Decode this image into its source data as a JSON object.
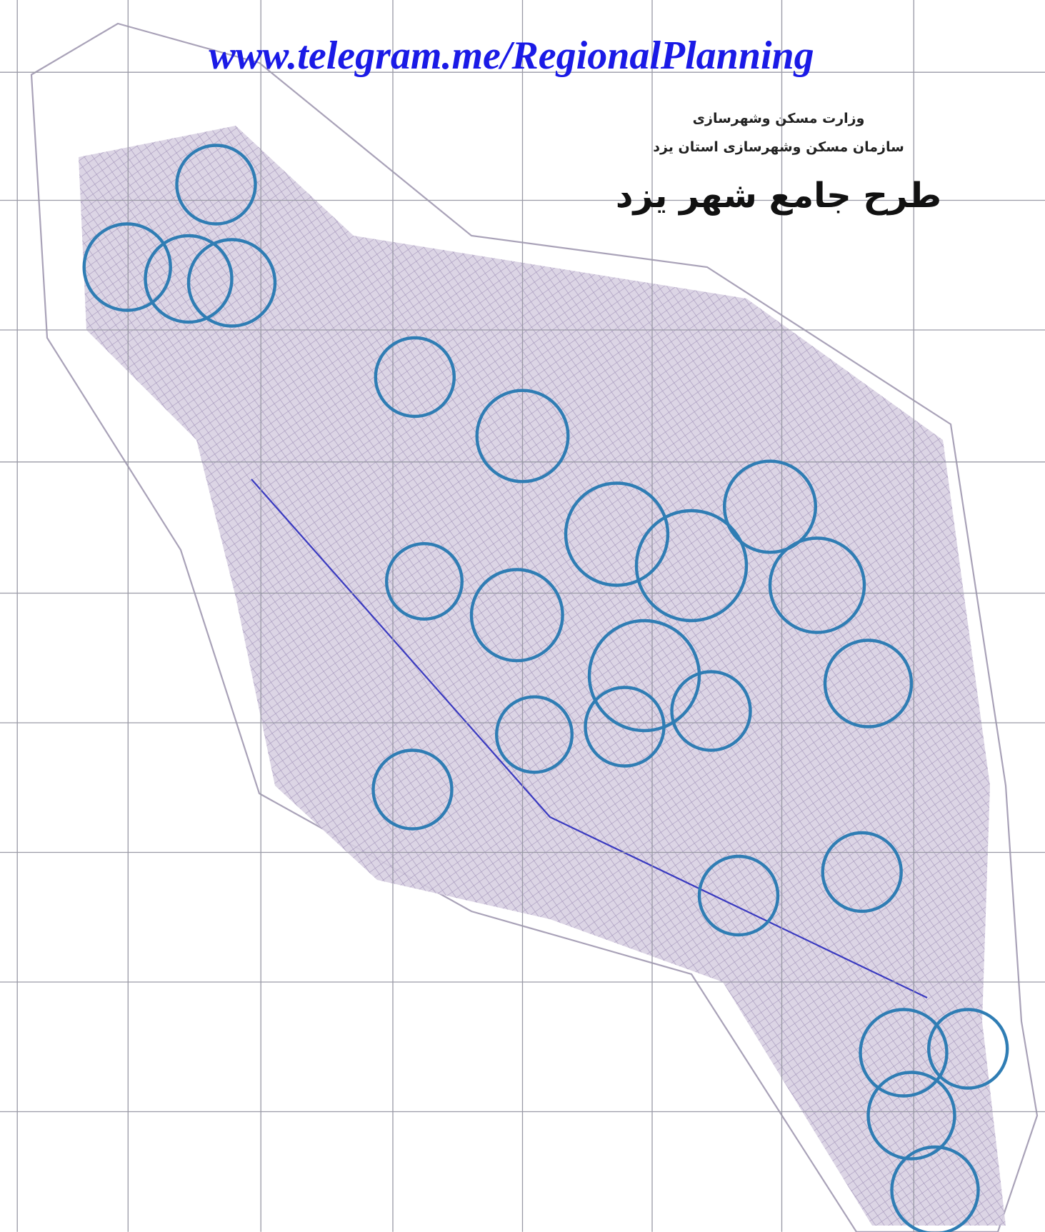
{
  "watermark": "www.telegram.me/RegionalPlanning",
  "header": {
    "ministry": "وزارت مسکن وشهرسازی",
    "organization": "سازمان مسکن وشهرسازی استان یزد",
    "title": "طرح جامع شهر یزد"
  }
}
